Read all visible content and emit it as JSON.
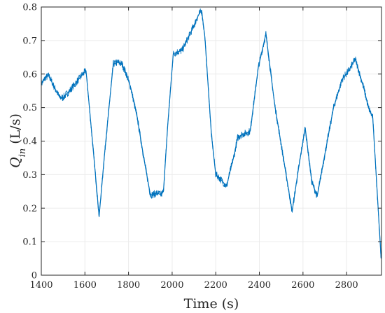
{
  "chart_data": {
    "type": "line",
    "xlabel": "Time (s)",
    "ylabel": {
      "symbol": "Q",
      "subscript": "in",
      "unit": " (L/s)"
    },
    "xlim": [
      1400,
      2960
    ],
    "ylim": [
      0,
      0.8
    ],
    "xticks": [
      "1400",
      "1600",
      "1800",
      "2000",
      "2200",
      "2400",
      "2600",
      "2800"
    ],
    "yticks": [
      "0",
      "0.1",
      "0.2",
      "0.3",
      "0.4",
      "0.5",
      "0.6",
      "0.7",
      "0.8"
    ],
    "grid": true,
    "color": "#0072BD",
    "series": [
      {
        "x": [
          1400,
          1420,
          1435,
          1460,
          1485,
          1500,
          1530,
          1560,
          1590,
          1605,
          1615,
          1640,
          1665,
          1690,
          1715,
          1730,
          1750,
          1770,
          1790,
          1810,
          1840,
          1870,
          1900,
          1910,
          1930,
          1950,
          1960,
          1980,
          2005,
          2020,
          2045,
          2075,
          2100,
          2120,
          2135,
          2150,
          2180,
          2200,
          2210,
          2230,
          2250,
          2262,
          2285,
          2300,
          2320,
          2345,
          2358,
          2395,
          2430,
          2470,
          2510,
          2550,
          2580,
          2610,
          2640,
          2665,
          2700,
          2740,
          2780,
          2810,
          2840,
          2860,
          2880,
          2900,
          2920,
          2940,
          2958
        ],
        "y": [
          0.57,
          0.59,
          0.595,
          0.56,
          0.53,
          0.53,
          0.55,
          0.575,
          0.6,
          0.61,
          0.54,
          0.36,
          0.175,
          0.36,
          0.53,
          0.63,
          0.635,
          0.63,
          0.6,
          0.56,
          0.47,
          0.35,
          0.24,
          0.24,
          0.245,
          0.24,
          0.25,
          0.45,
          0.66,
          0.665,
          0.67,
          0.71,
          0.745,
          0.775,
          0.79,
          0.71,
          0.42,
          0.3,
          0.295,
          0.28,
          0.265,
          0.3,
          0.36,
          0.41,
          0.42,
          0.425,
          0.43,
          0.62,
          0.72,
          0.51,
          0.35,
          0.19,
          0.32,
          0.44,
          0.28,
          0.235,
          0.36,
          0.5,
          0.585,
          0.61,
          0.645,
          0.6,
          0.555,
          0.5,
          0.47,
          0.25,
          0.05
        ]
      }
    ]
  }
}
